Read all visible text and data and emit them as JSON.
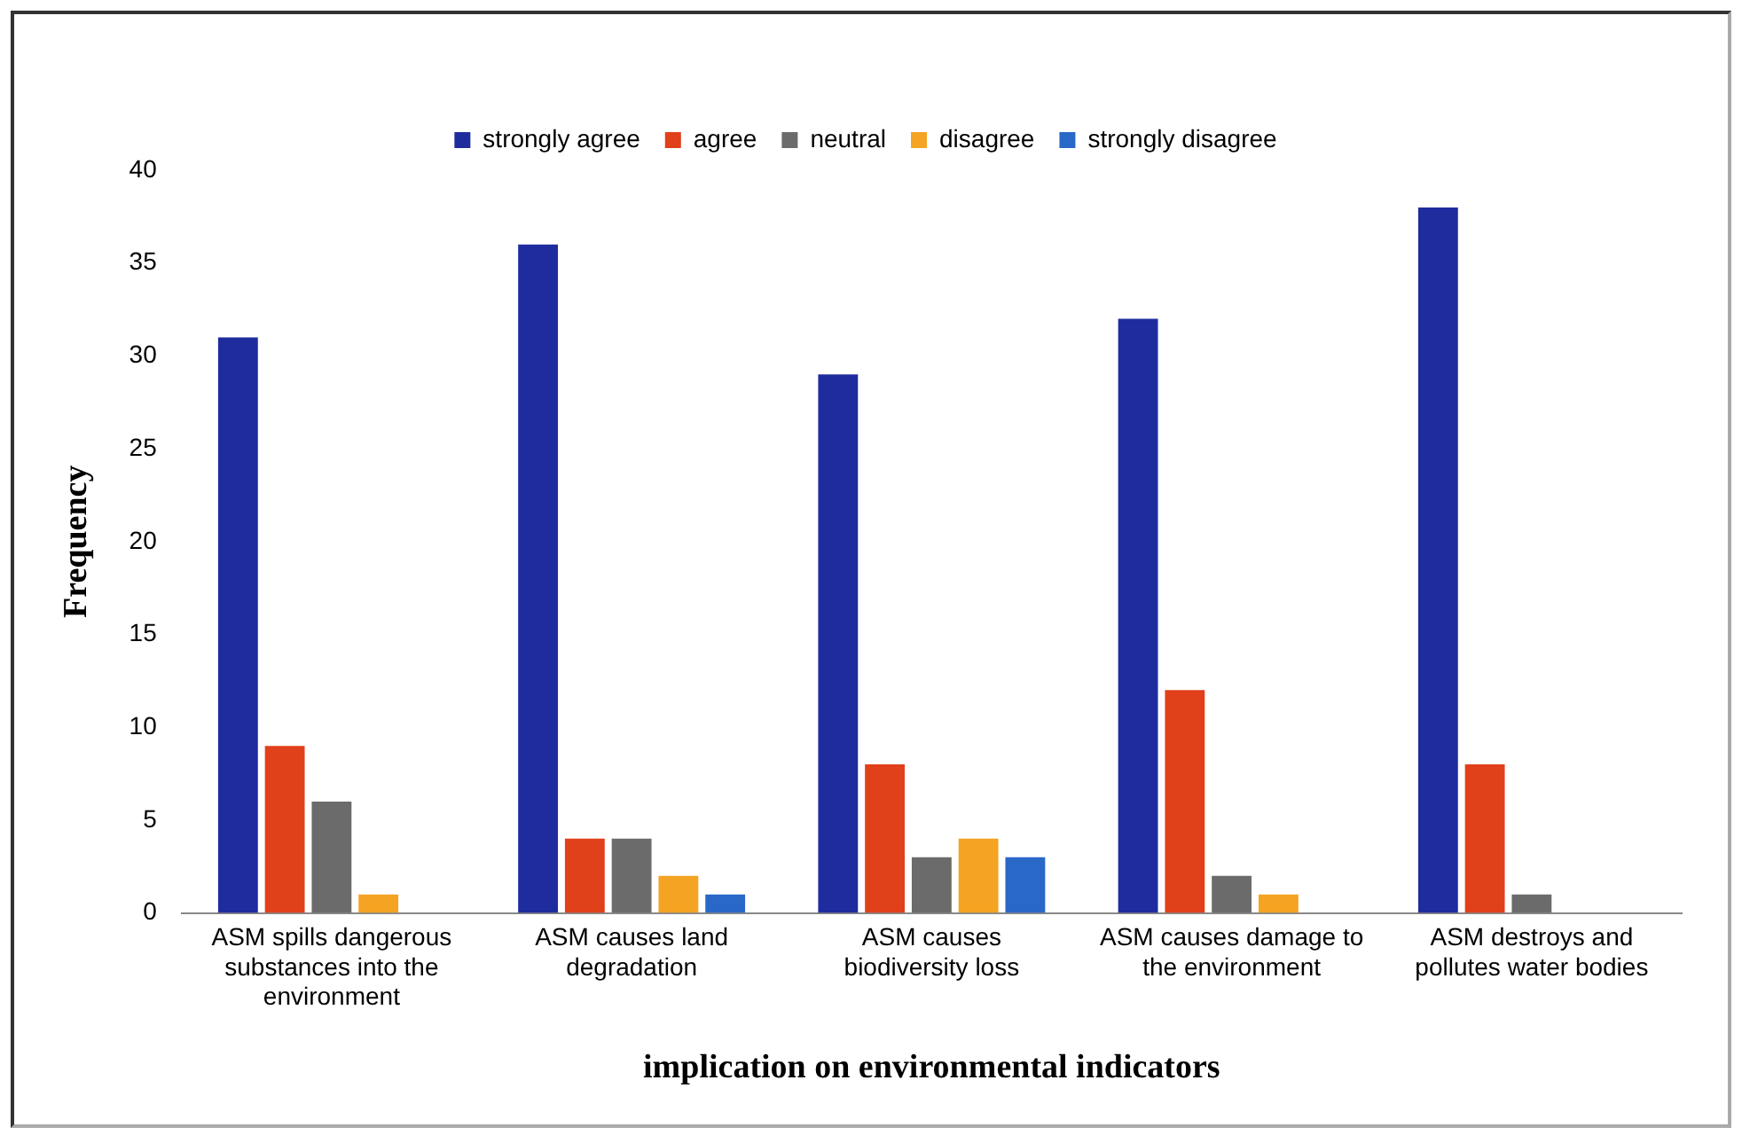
{
  "chart_data": {
    "type": "bar",
    "xlabel": "implication on environmental indicators",
    "ylabel": "Frequency",
    "categories": [
      "ASM spills dangerous substances into the environment",
      "ASM causes land degradation",
      "ASM causes biodiversity loss",
      "ASM causes damage to the environment",
      "ASM destroys and pollutes water bodies"
    ],
    "series": [
      {
        "name": "strongly agree",
        "color": "#1f2c9e",
        "values": [
          31,
          36,
          29,
          32,
          38
        ]
      },
      {
        "name": "agree",
        "color": "#e0401a",
        "values": [
          9,
          4,
          8,
          12,
          8
        ]
      },
      {
        "name": "neutral",
        "color": "#6b6b6b",
        "values": [
          6,
          4,
          3,
          2,
          1
        ]
      },
      {
        "name": "disagree",
        "color": "#f4a323",
        "values": [
          1,
          2,
          4,
          1,
          0
        ]
      },
      {
        "name": "strongly disagree",
        "color": "#2a68c8",
        "values": [
          0,
          1,
          3,
          0,
          0
        ]
      }
    ],
    "ylim": [
      0,
      40
    ],
    "yticks": [
      0,
      5,
      10,
      15,
      20,
      25,
      30,
      35,
      40
    ],
    "grid": false,
    "legend": "top"
  }
}
